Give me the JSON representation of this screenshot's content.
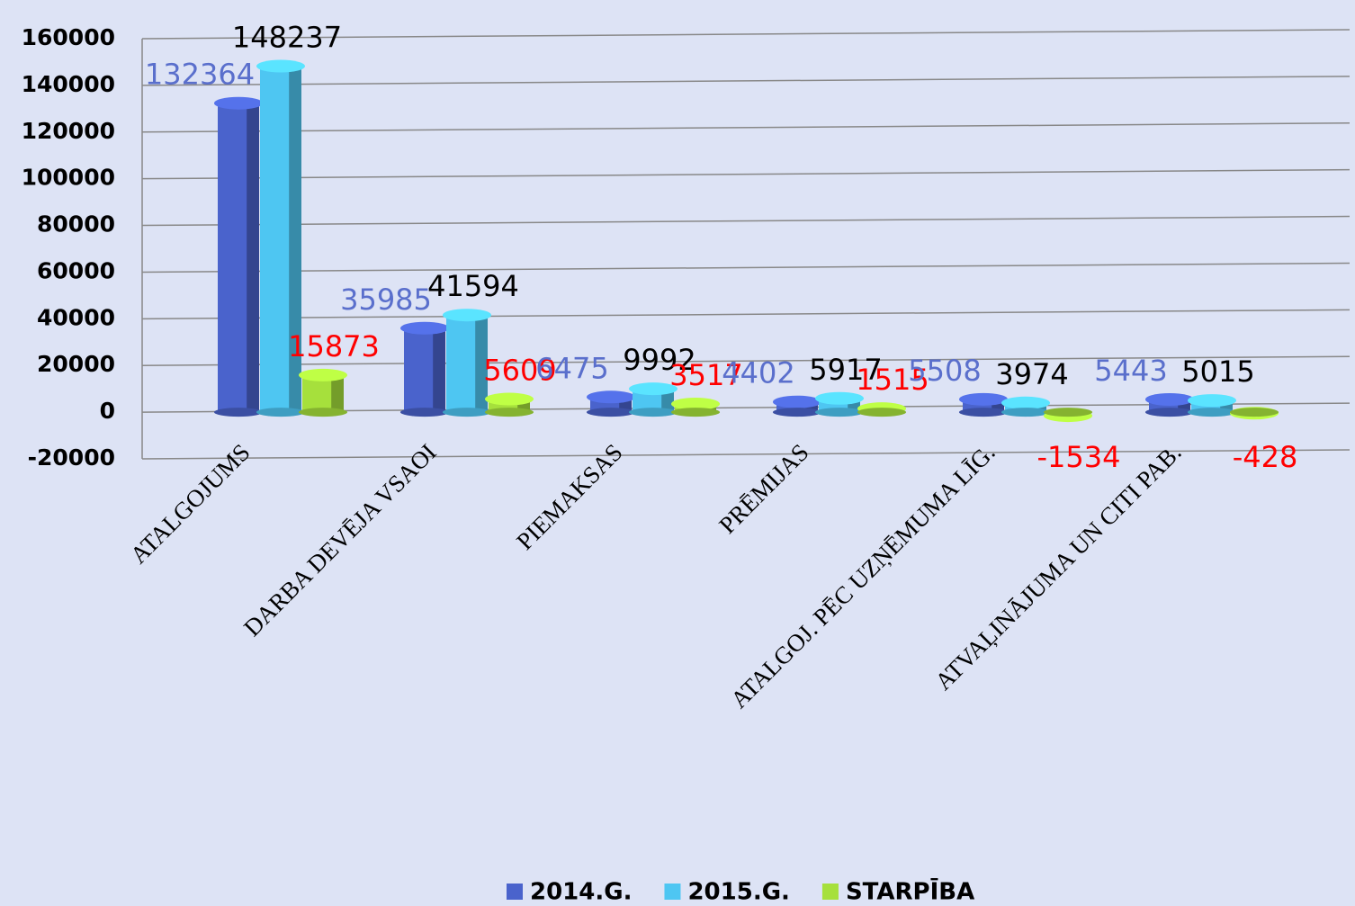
{
  "chart_data": {
    "type": "bar3d",
    "categories": [
      "ATALGOJUMS",
      "DARBA DEVĒJA VSAOI",
      "PIEMAKSAS",
      "PRĒMIJAS",
      "ATALGOJ. PĒC UZŅĒMUMA LĪG.",
      "ATVAĻINĀJUMA UN CITI PAB."
    ],
    "series": [
      {
        "name": "2014.G.",
        "color": "#4a63cc",
        "label_color": "#5a6fcc",
        "values": [
          132364,
          35985,
          6475,
          4402,
          5508,
          5443
        ]
      },
      {
        "name": "2015.G.",
        "color": "#4ec6f2",
        "label_color": "#000000",
        "values": [
          148237,
          41594,
          9992,
          5917,
          3974,
          5015
        ]
      },
      {
        "name": "STARPĪBA",
        "color": "#a6e03c",
        "label_color": "#ff0000",
        "values": [
          15873,
          5609,
          3517,
          1515,
          -1534,
          -428
        ]
      }
    ],
    "ylim": [
      -20000,
      160000
    ],
    "yticks": [
      -20000,
      0,
      20000,
      40000,
      60000,
      80000,
      100000,
      120000,
      140000,
      160000
    ],
    "grid": true,
    "legend": "bottom"
  }
}
